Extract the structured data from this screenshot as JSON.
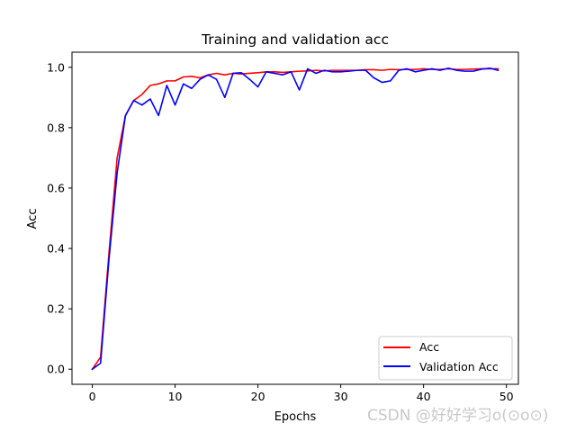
{
  "chart_data": {
    "type": "line",
    "title": "Training and validation acc",
    "xlabel": "Epochs",
    "ylabel": "Acc",
    "xlim": [
      -2.45,
      51.45
    ],
    "ylim": [
      -0.05,
      1.05
    ],
    "xticks": [
      0,
      10,
      20,
      30,
      40,
      50
    ],
    "yticks": [
      0.0,
      0.2,
      0.4,
      0.6,
      0.8,
      1.0
    ],
    "xtick_labels": [
      "0",
      "10",
      "20",
      "30",
      "40",
      "50"
    ],
    "ytick_labels": [
      "0.0",
      "0.2",
      "0.4",
      "0.6",
      "0.8",
      "1.0"
    ],
    "grid": false,
    "legend_position": "lower-right",
    "x": [
      0,
      1,
      2,
      3,
      4,
      5,
      6,
      7,
      8,
      9,
      10,
      11,
      12,
      13,
      14,
      15,
      16,
      17,
      18,
      19,
      20,
      21,
      22,
      23,
      24,
      25,
      26,
      27,
      28,
      29,
      30,
      31,
      32,
      33,
      34,
      35,
      36,
      37,
      38,
      39,
      40,
      41,
      42,
      43,
      44,
      45,
      46,
      47,
      48,
      49
    ],
    "series": [
      {
        "name": "Acc",
        "color": "#ff0000",
        "values": [
          0.0,
          0.04,
          0.38,
          0.7,
          0.84,
          0.89,
          0.91,
          0.94,
          0.945,
          0.955,
          0.955,
          0.968,
          0.97,
          0.965,
          0.975,
          0.98,
          0.975,
          0.98,
          0.978,
          0.98,
          0.982,
          0.985,
          0.985,
          0.983,
          0.985,
          0.987,
          0.988,
          0.99,
          0.988,
          0.99,
          0.99,
          0.99,
          0.99,
          0.992,
          0.992,
          0.99,
          0.993,
          0.992,
          0.993,
          0.993,
          0.995,
          0.993,
          0.993,
          0.995,
          0.993,
          0.993,
          0.994,
          0.995,
          0.995,
          0.995
        ]
      },
      {
        "name": "Validation Acc",
        "color": "#0000ff",
        "values": [
          0.0,
          0.02,
          0.36,
          0.65,
          0.84,
          0.89,
          0.875,
          0.895,
          0.84,
          0.94,
          0.875,
          0.945,
          0.93,
          0.96,
          0.975,
          0.96,
          0.9,
          0.98,
          0.982,
          0.96,
          0.935,
          0.985,
          0.98,
          0.975,
          0.985,
          0.925,
          0.995,
          0.98,
          0.99,
          0.985,
          0.985,
          0.987,
          0.99,
          0.99,
          0.965,
          0.95,
          0.955,
          0.99,
          0.995,
          0.985,
          0.99,
          0.995,
          0.99,
          0.997,
          0.99,
          0.987,
          0.987,
          0.994,
          0.997,
          0.99
        ]
      }
    ]
  },
  "watermark": "CSDN @好好学习o(⊙o⊙)"
}
